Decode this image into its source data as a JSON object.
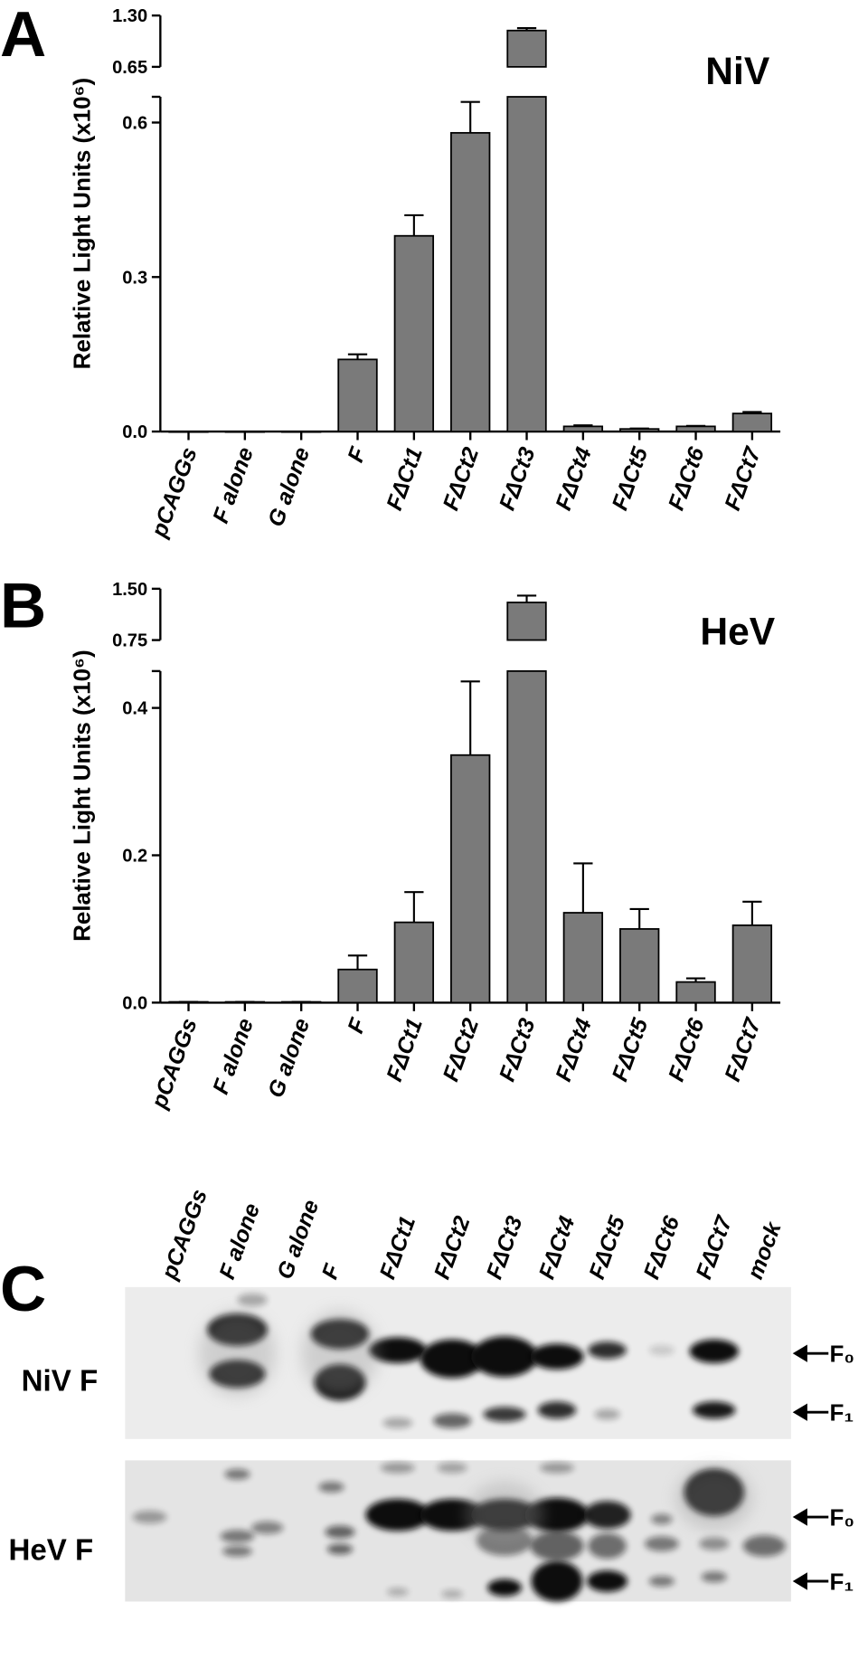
{
  "chart_data": [
    {
      "type": "bar",
      "panel_label": "A",
      "title": "NiV",
      "y_label": "Relative Light Units (x10⁶)",
      "categories": [
        "pCAGGs",
        "F alone",
        "G alone",
        "F",
        "FΔCt1",
        "FΔCt2",
        "FΔCt3",
        "FΔCt4",
        "FΔCt5",
        "FΔCt6",
        "FΔCt7"
      ],
      "values": [
        0,
        0,
        0,
        0.14,
        0.38,
        0.58,
        1.11,
        0.01,
        0.005,
        0.01,
        0.035
      ],
      "errors": [
        0,
        0,
        0,
        0.01,
        0.04,
        0.06,
        0.03,
        0.002,
        0.001,
        0.001,
        0.003
      ],
      "color": "#7a7a7a",
      "axis_break": true,
      "ylim": [
        0,
        0.65
      ],
      "yticks": [
        {
          "value": 0,
          "label": "0.0"
        },
        0.3,
        0.6
      ],
      "ylim_upper": [
        0.65,
        1.3
      ],
      "yticks_upper": [
        0.65,
        {
          "value": 1.3,
          "label": "1.30"
        }
      ]
    },
    {
      "type": "bar",
      "panel_label": "B",
      "title": "HeV",
      "y_label": "Relative Light Units (x10⁶)",
      "categories": [
        "pCAGGs",
        "F alone",
        "G alone",
        "F",
        "FΔCt1",
        "FΔCt2",
        "FΔCt3",
        "FΔCt4",
        "FΔCt5",
        "FΔCt6",
        "FΔCt7"
      ],
      "values": [
        0.001,
        0.001,
        0.001,
        0.045,
        0.109,
        0.336,
        1.3,
        0.122,
        0.1,
        0.028,
        0.105
      ],
      "errors": [
        0,
        0,
        0,
        0.019,
        0.041,
        0.1,
        0.1,
        0.067,
        0.027,
        0.005,
        0.032
      ],
      "color": "#7a7a7a",
      "axis_break": true,
      "ylim": [
        0,
        0.45
      ],
      "yticks": [
        {
          "value": 0,
          "label": "0.0"
        },
        0.2,
        0.4
      ],
      "ylim_upper": [
        0.75,
        1.5
      ],
      "yticks_upper": [
        0.75,
        {
          "value": 1.5,
          "label": "1.50"
        }
      ]
    }
  ],
  "blot": {
    "panel_label": "C",
    "lanes": [
      "pCAGGs",
      "F alone",
      "G alone",
      "F",
      "FΔCt1",
      "FΔCt2",
      "FΔCt3",
      "FΔCt4",
      "FΔCt5",
      "FΔCt6",
      "FΔCt7",
      "mock"
    ],
    "rows": [
      {
        "label": "NiV F",
        "bands": [
          "F₀",
          "F₁"
        ]
      },
      {
        "label": "HeV F",
        "bands": [
          "F₀",
          "F₁"
        ]
      }
    ]
  }
}
